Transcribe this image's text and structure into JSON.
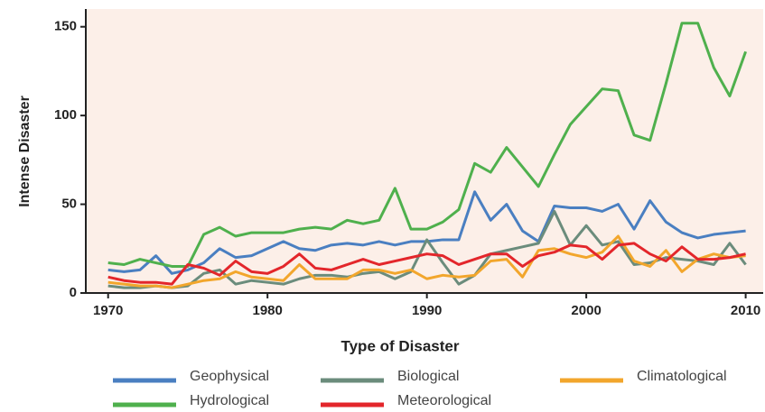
{
  "chart_data": {
    "type": "line",
    "xlabel": "Type of Disaster",
    "ylabel": "Intense Disaster",
    "x": [
      1970,
      1971,
      1972,
      1973,
      1974,
      1975,
      1976,
      1977,
      1978,
      1979,
      1980,
      1981,
      1982,
      1983,
      1984,
      1985,
      1986,
      1987,
      1988,
      1989,
      1990,
      1991,
      1992,
      1993,
      1994,
      1995,
      1996,
      1997,
      1998,
      1999,
      2000,
      2001,
      2002,
      2003,
      2004,
      2005,
      2006,
      2007,
      2008,
      2009,
      2010
    ],
    "xlim": [
      1968.6,
      2011.1
    ],
    "xticks": [
      1970,
      1980,
      1990,
      2000,
      2010
    ],
    "ylim": [
      0,
      160
    ],
    "yticks": [
      0,
      50,
      100,
      150
    ],
    "series": [
      {
        "name": "Geophysical",
        "color": "#4a7fc1",
        "values": [
          13,
          12,
          13,
          21,
          11,
          13,
          17,
          25,
          20,
          21,
          25,
          29,
          25,
          24,
          27,
          28,
          27,
          29,
          27,
          29,
          29,
          30,
          30,
          57,
          41,
          50,
          35,
          29,
          49,
          48,
          48,
          46,
          50,
          36,
          52,
          40,
          34,
          31,
          33,
          34,
          35
        ]
      },
      {
        "name": "Biological",
        "color": "#6b8c7c",
        "values": [
          4,
          3,
          3,
          4,
          3,
          4,
          11,
          13,
          5,
          7,
          6,
          5,
          8,
          10,
          10,
          9,
          11,
          12,
          8,
          12,
          30,
          17,
          5,
          10,
          22,
          24,
          26,
          28,
          46,
          27,
          38,
          27,
          29,
          16,
          17,
          20,
          19,
          18,
          16,
          28,
          16
        ]
      },
      {
        "name": "Climatological",
        "color": "#f2a62c",
        "values": [
          6,
          5,
          4,
          4,
          3,
          5,
          7,
          8,
          12,
          9,
          8,
          7,
          16,
          8,
          8,
          8,
          13,
          13,
          11,
          13,
          8,
          10,
          9,
          10,
          18,
          19,
          9,
          24,
          25,
          22,
          20,
          23,
          32,
          18,
          15,
          24,
          12,
          19,
          22,
          20,
          21
        ]
      },
      {
        "name": "Hydrological",
        "color": "#4fb04d",
        "values": [
          17,
          16,
          19,
          17,
          15,
          15,
          33,
          37,
          32,
          34,
          34,
          34,
          36,
          37,
          36,
          41,
          39,
          41,
          59,
          36,
          36,
          40,
          47,
          73,
          68,
          82,
          71,
          60,
          78,
          95,
          105,
          115,
          114,
          89,
          86,
          118,
          152,
          152,
          127,
          111,
          136
        ]
      },
      {
        "name": "Meteorological",
        "color": "#e3262b",
        "values": [
          9,
          7,
          6,
          6,
          5,
          16,
          14,
          10,
          18,
          12,
          11,
          15,
          22,
          14,
          13,
          16,
          19,
          16,
          18,
          20,
          22,
          21,
          16,
          19,
          22,
          22,
          15,
          21,
          23,
          27,
          26,
          19,
          27,
          28,
          22,
          18,
          26,
          19,
          19,
          20,
          22
        ]
      }
    ]
  }
}
